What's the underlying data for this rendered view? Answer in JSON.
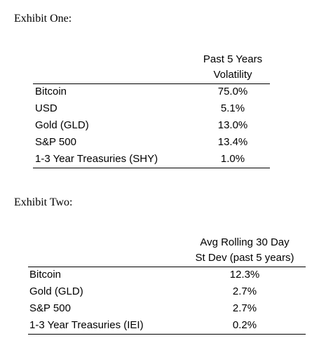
{
  "exhibits": [
    {
      "title": "Exhibit One:",
      "header": [
        "Past 5 Years",
        "Volatility"
      ],
      "rows": [
        [
          "Bitcoin",
          "75.0%"
        ],
        [
          "USD",
          "5.1%"
        ],
        [
          "Gold (GLD)",
          "13.0%"
        ],
        [
          "S&P 500",
          "13.4%"
        ],
        [
          "1-3 Year Treasuries (SHY)",
          "1.0%"
        ]
      ]
    },
    {
      "title": "Exhibit Two:",
      "header": [
        "Avg Rolling 30 Day",
        "St Dev (past 5 years)"
      ],
      "rows": [
        [
          "Bitcoin",
          "12.3%"
        ],
        [
          "Gold (GLD)",
          "2.7%"
        ],
        [
          "S&P 500",
          "2.7%"
        ],
        [
          "1-3 Year Treasuries (IEI)",
          "0.2%"
        ]
      ]
    }
  ]
}
